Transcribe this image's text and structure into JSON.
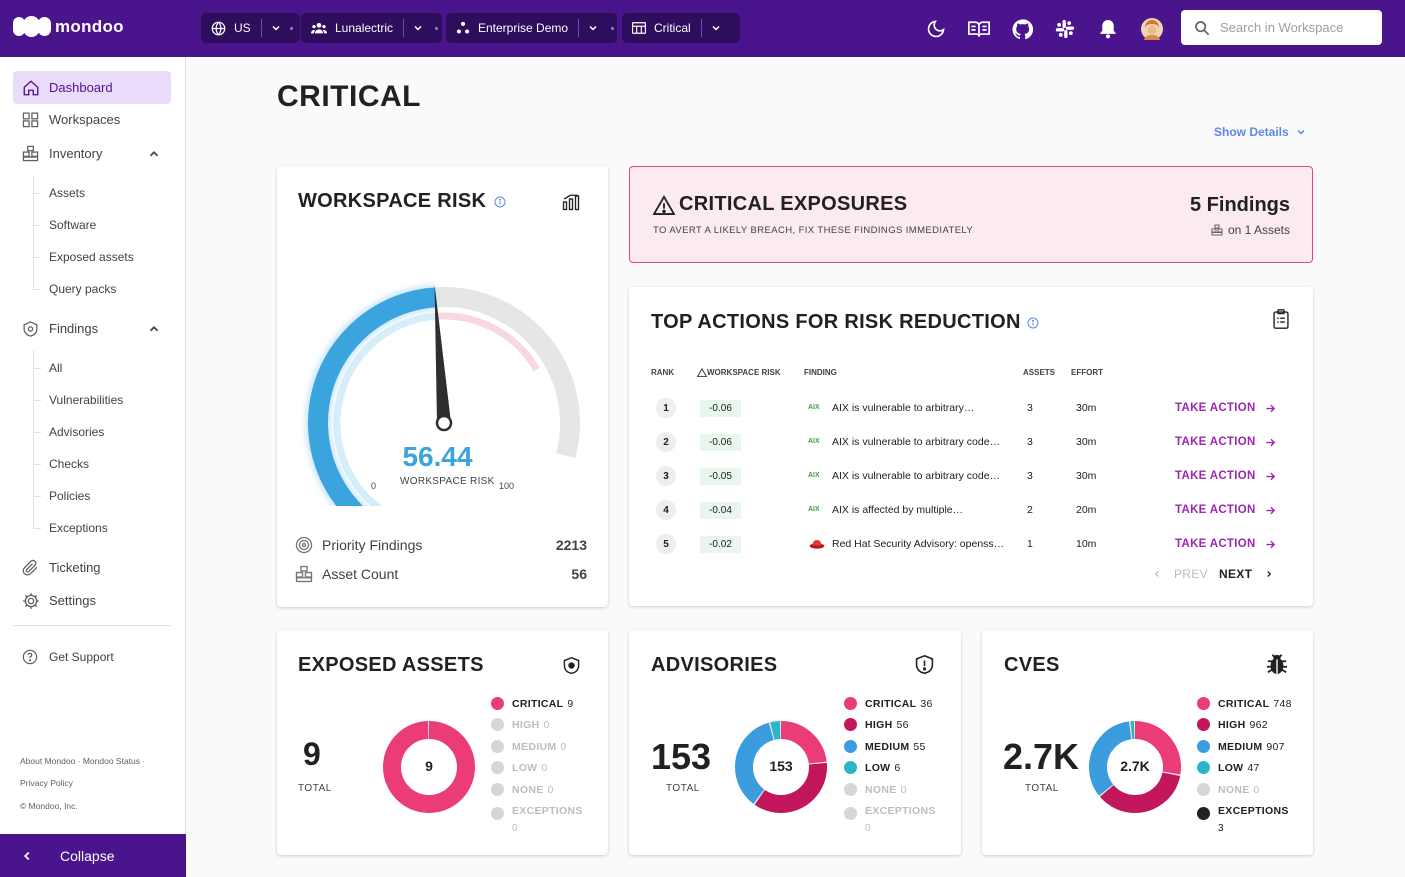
{
  "brand": {
    "name": "mondoo"
  },
  "topbar": {
    "region": "US",
    "org": "Lunalectric",
    "space": "Enterprise Demo",
    "view": "Critical",
    "search_placeholder": "Search in Workspace"
  },
  "sidebar": {
    "dashboard": "Dashboard",
    "workspaces": "Workspaces",
    "inventory": "Inventory",
    "inventory_items": [
      "Assets",
      "Software",
      "Exposed assets",
      "Query packs"
    ],
    "findings": "Findings",
    "findings_items": [
      "All",
      "Vulnerabilities",
      "Advisories",
      "Checks",
      "Policies",
      "Exceptions"
    ],
    "ticketing": "Ticketing",
    "settings": "Settings",
    "support": "Get Support",
    "footer_links": "About Mondoo · Mondoo Status ·",
    "privacy": "Privacy Policy",
    "copyright": "© Mondoo, Inc.",
    "collapse": "Collapse"
  },
  "page": {
    "title": "CRITICAL",
    "show_details": "Show Details"
  },
  "workspace_risk": {
    "title": "WORKSPACE RISK",
    "score": "56.44",
    "score_value": 56.44,
    "score_label": "WORKSPACE RISK",
    "min": "0",
    "max": "100",
    "priority_label": "Priority Findings",
    "priority_value": "2213",
    "asset_label": "Asset Count",
    "asset_value": "56"
  },
  "critical_exposures": {
    "title": "CRITICAL EXPOSURES",
    "subtitle": "TO AVERT A LIKELY BREACH, FIX THESE FINDINGS IMMEDIATELY",
    "findings": "5 Findings",
    "assets": "on 1 Assets"
  },
  "top_actions": {
    "title": "TOP ACTIONS FOR RISK REDUCTION",
    "headers": {
      "rank": "RANK",
      "risk": "WORKSPACE RISK",
      "finding": "FINDING",
      "assets": "ASSETS",
      "effort": "EFFORT"
    },
    "rows": [
      {
        "rank": "1",
        "risk": "-0.06",
        "tag": "AIX",
        "finding": "AIX is vulnerable to arbitrary…",
        "assets": "3",
        "effort": "30m",
        "action": "TAKE ACTION"
      },
      {
        "rank": "2",
        "risk": "-0.06",
        "tag": "AIX",
        "finding": "AIX is vulnerable to arbitrary code…",
        "assets": "3",
        "effort": "30m",
        "action": "TAKE ACTION"
      },
      {
        "rank": "3",
        "risk": "-0.05",
        "tag": "AIX",
        "finding": "AIX is vulnerable to arbitrary code…",
        "assets": "3",
        "effort": "30m",
        "action": "TAKE ACTION"
      },
      {
        "rank": "4",
        "risk": "-0.04",
        "tag": "AIX",
        "finding": "AIX is affected by multiple…",
        "assets": "2",
        "effort": "20m",
        "action": "TAKE ACTION"
      },
      {
        "rank": "5",
        "risk": "-0.02",
        "tag": "",
        "finding": "Red Hat Security Advisory: openss…",
        "assets": "1",
        "effort": "10m",
        "action": "TAKE ACTION"
      }
    ],
    "prev": "PREV",
    "next": "NEXT"
  },
  "exposed_assets": {
    "title": "EXPOSED ASSETS",
    "total": "9",
    "total_label": "TOTAL",
    "center": "9",
    "legend": [
      {
        "label": "CRITICAL",
        "value": "9",
        "n": 9,
        "color": "#ec3b79"
      },
      {
        "label": "HIGH",
        "value": "0",
        "n": 0,
        "color": "#c2185b"
      },
      {
        "label": "MEDIUM",
        "value": "0",
        "n": 0,
        "color": "#3b9ddd"
      },
      {
        "label": "LOW",
        "value": "0",
        "n": 0,
        "color": "#29b6c6"
      },
      {
        "label": "NONE",
        "value": "0",
        "n": 0,
        "color": "#bdbdbd"
      },
      {
        "label": "EXCEPTIONS",
        "value": "0",
        "n": 0,
        "color": "#212121"
      }
    ]
  },
  "advisories": {
    "title": "ADVISORIES",
    "total": "153",
    "total_label": "TOTAL",
    "center": "153",
    "legend": [
      {
        "label": "CRITICAL",
        "value": "36",
        "n": 36,
        "color": "#ec3b79"
      },
      {
        "label": "HIGH",
        "value": "56",
        "n": 56,
        "color": "#c2185b"
      },
      {
        "label": "MEDIUM",
        "value": "55",
        "n": 55,
        "color": "#3b9ddd"
      },
      {
        "label": "LOW",
        "value": "6",
        "n": 6,
        "color": "#29b6c6"
      },
      {
        "label": "NONE",
        "value": "0",
        "n": 0,
        "color": "#bdbdbd"
      },
      {
        "label": "EXCEPTIONS",
        "value": "0",
        "n": 0,
        "color": "#212121"
      }
    ]
  },
  "cves": {
    "title": "CVES",
    "total": "2.7K",
    "total_label": "TOTAL",
    "center": "2.7K",
    "legend": [
      {
        "label": "CRITICAL",
        "value": "748",
        "n": 748,
        "color": "#ec3b79"
      },
      {
        "label": "HIGH",
        "value": "962",
        "n": 962,
        "color": "#c2185b"
      },
      {
        "label": "MEDIUM",
        "value": "907",
        "n": 907,
        "color": "#3b9ddd"
      },
      {
        "label": "LOW",
        "value": "47",
        "n": 47,
        "color": "#29b6c6"
      },
      {
        "label": "NONE",
        "value": "0",
        "n": 0,
        "color": "#bdbdbd"
      },
      {
        "label": "EXCEPTIONS",
        "value": "3",
        "n": 3,
        "color": "#212121"
      }
    ]
  }
}
